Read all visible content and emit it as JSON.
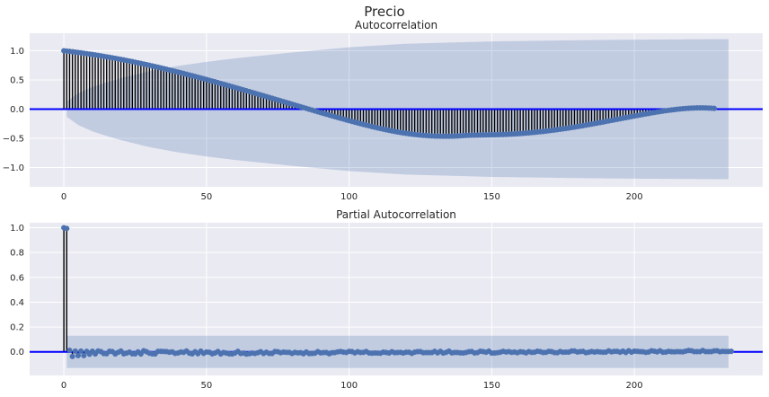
{
  "figure": {
    "title": "Precio"
  },
  "chart_data": [
    {
      "type": "stem",
      "title": "Autocorrelation",
      "xlabel": "",
      "ylabel": "",
      "xlim": [
        -12,
        245
      ],
      "ylim": [
        -1.33,
        1.3
      ],
      "xticks": [
        0,
        50,
        100,
        150,
        200
      ],
      "xtick_labels": [
        "0",
        "50",
        "100",
        "150",
        "200"
      ],
      "yticks": [
        -1.0,
        -0.5,
        0.0,
        0.5,
        1.0
      ],
      "ytick_labels": [
        "−1.0",
        "−0.5",
        "0.0",
        "0.5",
        "1.0"
      ],
      "grid": true,
      "x_start": 0,
      "values": [
        1.0,
        0.994,
        0.989,
        0.983,
        0.977,
        0.97,
        0.964,
        0.957,
        0.95,
        0.943,
        0.936,
        0.928,
        0.92,
        0.913,
        0.904,
        0.896,
        0.888,
        0.879,
        0.87,
        0.861,
        0.852,
        0.843,
        0.833,
        0.823,
        0.814,
        0.803,
        0.793,
        0.783,
        0.772,
        0.762,
        0.751,
        0.74,
        0.729,
        0.718,
        0.706,
        0.695,
        0.683,
        0.671,
        0.66,
        0.647,
        0.635,
        0.623,
        0.611,
        0.598,
        0.585,
        0.573,
        0.56,
        0.547,
        0.534,
        0.521,
        0.508,
        0.494,
        0.481,
        0.468,
        0.454,
        0.44,
        0.427,
        0.413,
        0.399,
        0.385,
        0.371,
        0.357,
        0.343,
        0.329,
        0.315,
        0.301,
        0.287,
        0.273,
        0.258,
        0.244,
        0.23,
        0.215,
        0.201,
        0.187,
        0.172,
        0.158,
        0.143,
        0.129,
        0.114,
        0.1,
        0.085,
        0.071,
        0.056,
        0.042,
        0.027,
        0.013,
        -0.002,
        -0.016,
        -0.03,
        -0.045,
        -0.059,
        -0.073,
        -0.087,
        -0.101,
        -0.115,
        -0.129,
        -0.143,
        -0.157,
        -0.17,
        -0.184,
        -0.197,
        -0.21,
        -0.223,
        -0.236,
        -0.249,
        -0.262,
        -0.274,
        -0.286,
        -0.298,
        -0.31,
        -0.321,
        -0.332,
        -0.343,
        -0.353,
        -0.363,
        -0.373,
        -0.382,
        -0.391,
        -0.399,
        -0.407,
        -0.414,
        -0.421,
        -0.428,
        -0.434,
        -0.439,
        -0.444,
        -0.449,
        -0.452,
        -0.456,
        -0.458,
        -0.461,
        -0.462,
        -0.463,
        -0.464,
        -0.464,
        -0.464,
        -0.463,
        -0.461,
        -0.459,
        -0.456,
        -0.453,
        -0.45,
        -0.448,
        -0.446,
        -0.445,
        -0.444,
        -0.443,
        -0.442,
        -0.441,
        -0.44,
        -0.439,
        -0.438,
        -0.437,
        -0.435,
        -0.434,
        -0.432,
        -0.429,
        -0.427,
        -0.424,
        -0.421,
        -0.418,
        -0.414,
        -0.41,
        -0.406,
        -0.402,
        -0.397,
        -0.392,
        -0.387,
        -0.382,
        -0.376,
        -0.37,
        -0.364,
        -0.358,
        -0.351,
        -0.344,
        -0.337,
        -0.33,
        -0.323,
        -0.315,
        -0.307,
        -0.299,
        -0.291,
        -0.283,
        -0.274,
        -0.265,
        -0.257,
        -0.248,
        -0.239,
        -0.23,
        -0.221,
        -0.211,
        -0.202,
        -0.193,
        -0.183,
        -0.174,
        -0.165,
        -0.155,
        -0.146,
        -0.137,
        -0.127,
        -0.118,
        -0.109,
        -0.1,
        -0.091,
        -0.082,
        -0.074,
        -0.065,
        -0.057,
        -0.049,
        -0.042,
        -0.034,
        -0.027,
        -0.02,
        -0.014,
        -0.008,
        -0.002,
        0.003,
        0.008,
        0.012,
        0.015,
        0.018,
        0.02,
        0.022,
        0.022,
        0.022,
        0.021,
        0.019,
        0.017,
        0.013
      ],
      "confidence_band": {
        "x": [
          1,
          5,
          10,
          15,
          20,
          25,
          30,
          40,
          50,
          60,
          70,
          80,
          100,
          120,
          150,
          180,
          200,
          233
        ],
        "upper": [
          0.13,
          0.27,
          0.38,
          0.46,
          0.53,
          0.59,
          0.65,
          0.74,
          0.81,
          0.87,
          0.92,
          0.97,
          1.06,
          1.12,
          1.16,
          1.18,
          1.19,
          1.2
        ]
      },
      "colors": {
        "stem": "#000000",
        "marker": "#4c72b0",
        "zero_line": "#0000ff",
        "band": "#4c72b0"
      }
    },
    {
      "type": "stem",
      "title": "Partial Autocorrelation",
      "xlabel": "",
      "ylabel": "",
      "xlim": [
        -12,
        245
      ],
      "ylim": [
        -0.19,
        1.04
      ],
      "xticks": [
        0,
        50,
        100,
        150,
        200
      ],
      "xtick_labels": [
        "0",
        "50",
        "100",
        "150",
        "200"
      ],
      "yticks": [
        0.0,
        0.2,
        0.4,
        0.6,
        0.8,
        1.0
      ],
      "ytick_labels": [
        "0.0",
        "0.2",
        "0.4",
        "0.6",
        "0.8",
        "1.0"
      ],
      "grid": true,
      "x_start": 0,
      "values": [
        1.0,
        0.994,
        0.012,
        -0.037,
        0.006,
        -0.03,
        0.006,
        -0.03,
        0.004,
        -0.019,
        0.005,
        -0.017,
        0.007,
        0.002,
        -0.014,
        -0.015,
        0.005,
        0.002,
        -0.017,
        -0.004,
        0.007,
        -0.016,
        -0.01,
        -0.002,
        -0.016,
        -0.016,
        0.0,
        -0.017,
        0.009,
        0.001,
        -0.011,
        -0.016,
        -0.017,
        0.004,
        0.004,
        0.003,
        0.002,
        -0.003,
        -0.0,
        -0.012,
        -0.009,
        -0.001,
        -0.004,
        0.007,
        -0.011,
        -0.016,
        0.001,
        -0.015,
        0.006,
        -0.012,
        -0.001,
        -0.003,
        -0.016,
        -0.009,
        0.003,
        -0.017,
        -0.005,
        -0.01,
        -0.016,
        -0.017,
        -0.009,
        0.004,
        -0.013,
        -0.01,
        -0.018,
        -0.015,
        -0.01,
        -0.013,
        -0.007,
        0.001,
        -0.013,
        -0.003,
        -0.013,
        -0.013,
        0.003,
        0.001,
        -0.007,
        -0.002,
        -0.004,
        -0.004,
        -0.013,
        -0.004,
        -0.008,
        -0.007,
        -0.015,
        -0.001,
        -0.014,
        -0.013,
        -0.011,
        0.002,
        -0.008,
        -0.006,
        -0.005,
        -0.015,
        -0.007,
        -0.006,
        0.0,
        0.003,
        -0.002,
        -0.005,
        0.004,
        0.002,
        -0.008,
        0.001,
        -0.005,
        -0.004,
        0.003,
        -0.009,
        -0.011,
        -0.009,
        -0.01,
        -0.011,
        -0.002,
        -0.005,
        -0.009,
        0.001,
        -0.007,
        -0.005,
        -0.004,
        -0.009,
        -0.003,
        -0.003,
        -0.012,
        -0.002,
        0.002,
        0.002,
        -0.007,
        -0.006,
        -0.006,
        -0.006,
        0.004,
        -0.008,
        0.004,
        -0.01,
        -0.004,
        0.006,
        -0.008,
        -0.005,
        -0.005,
        -0.008,
        -0.009,
        -0.005,
        0.001,
        0.003,
        -0.009,
        -0.006,
        0.005,
        0.002,
        -0.003,
        0.006,
        -0.01,
        -0.009,
        -0.007,
        -0.003,
        0.004,
        -0.001,
        0.002,
        -0.004,
        -0.001,
        -0.007,
        0.001,
        -0.001,
        -0.008,
        0.002,
        -0.004,
        -0.003,
        0.005,
        0.002,
        -0.005,
        -0.004,
        0.004,
        0.002,
        -0.006,
        -0.007,
        0.003,
        -0.003,
        -0.002,
        -0.002,
        0.007,
        0.007,
        -0.001,
        0.002,
        0.004,
        -0.007,
        -0.003,
        0.003,
        -0.002,
        0.002,
        -0.001,
        -0.003,
        -0.002,
        0.008,
        -0.0,
        0.004,
        0.004,
        -0.003,
        0.006,
        -0.005,
        0.009,
        -0.002,
        0.006,
        0.004,
        0.002,
        0.001,
        -0.004,
        -0.001,
        0.009,
        0.005,
        -0.0,
        0.009,
        -0.003,
        -0.002,
        0.004,
        0.001,
        -0.0,
        0.002,
        0.001,
        0.0,
        0.006,
        0.011,
        0.009,
        0.002,
        0.002,
        0.002,
        0.011,
        0.002,
        0.002,
        0.002,
        0.008,
        0.009,
        0.001,
        0.004,
        0.003,
        0.003,
        0.004
      ],
      "confidence_band": {
        "x": [
          1,
          233
        ],
        "upper": [
          0.13,
          0.13
        ]
      },
      "colors": {
        "stem": "#000000",
        "marker": "#4c72b0",
        "zero_line": "#0000ff",
        "band": "#4c72b0"
      }
    }
  ]
}
